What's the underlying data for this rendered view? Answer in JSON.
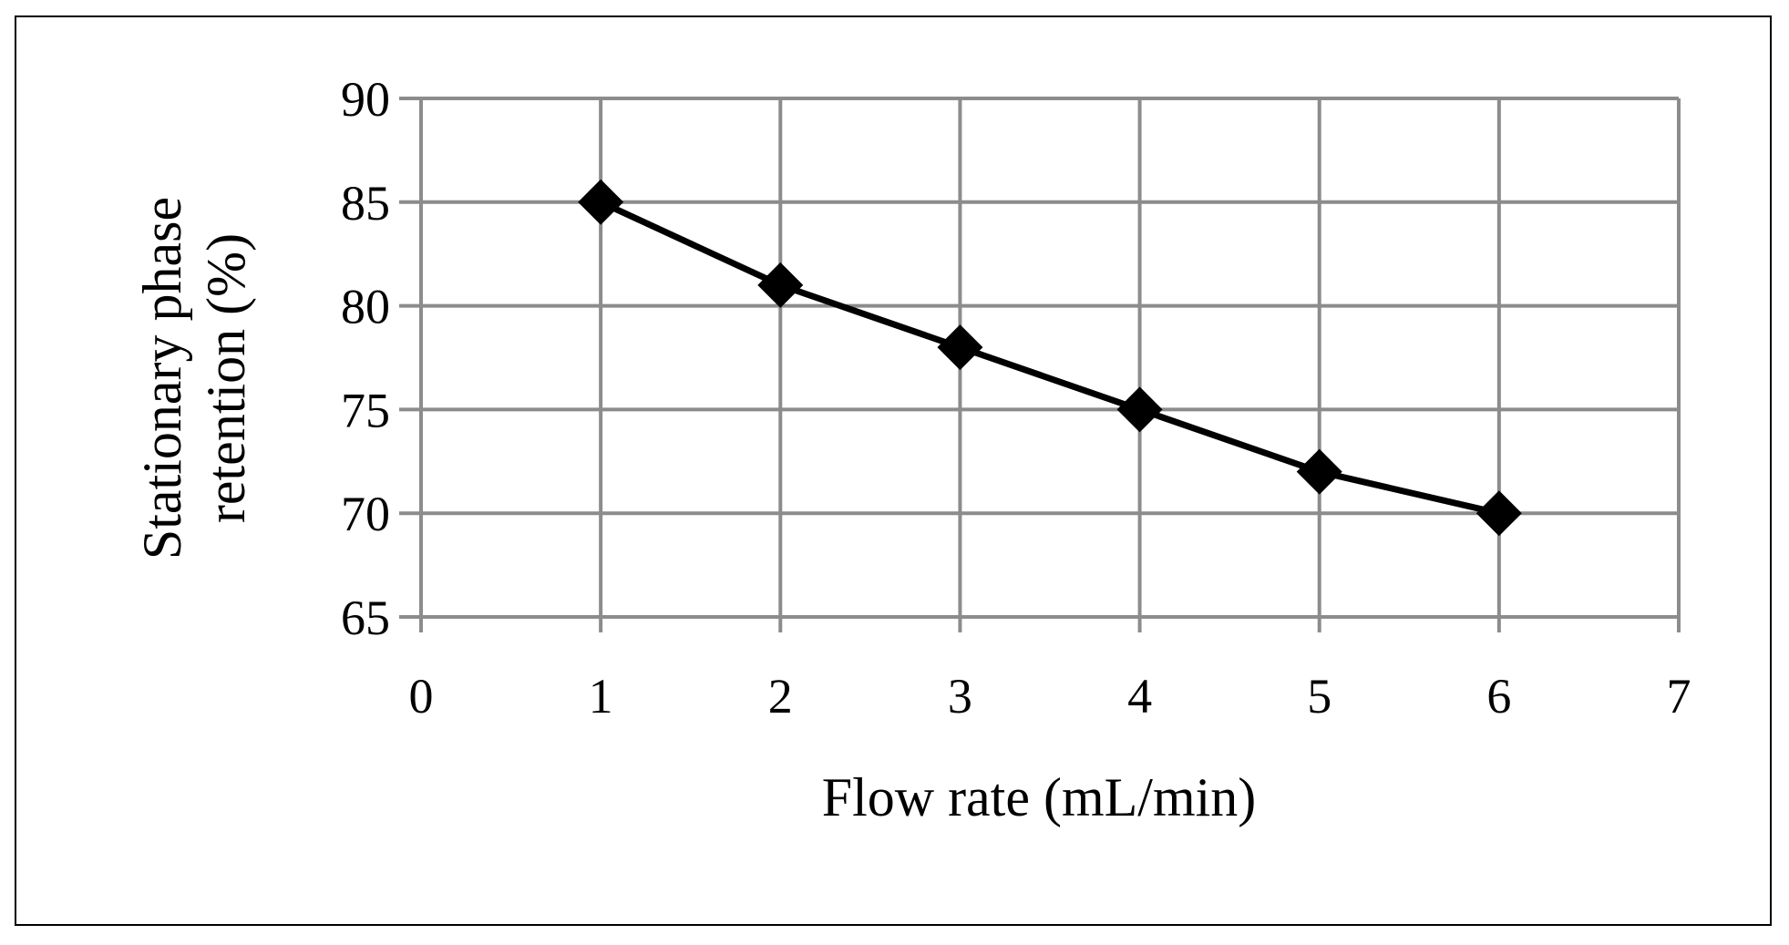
{
  "chart_data": {
    "type": "line",
    "title": "",
    "xlabel": "Flow rate (mL/min)",
    "ylabel_lines": [
      "Stationary phase",
      "retention (%)"
    ],
    "xlim": [
      0,
      7
    ],
    "ylim": [
      65,
      90
    ],
    "x_ticks": [
      "0",
      "1",
      "2",
      "3",
      "4",
      "5",
      "6",
      "7"
    ],
    "y_ticks": [
      "65",
      "70",
      "75",
      "80",
      "85",
      "90"
    ],
    "grid": true,
    "legend": "none",
    "series": [
      {
        "marker": "diamond",
        "color": "#000000",
        "points": [
          {
            "x": 1,
            "y": 85
          },
          {
            "x": 2,
            "y": 81
          },
          {
            "x": 3,
            "y": 78
          },
          {
            "x": 4,
            "y": 75
          },
          {
            "x": 5,
            "y": 72
          },
          {
            "x": 6,
            "y": 70
          }
        ]
      }
    ],
    "colors": {
      "grid": "#8c8c8c",
      "line": "#000000",
      "marker": "#000000"
    }
  }
}
